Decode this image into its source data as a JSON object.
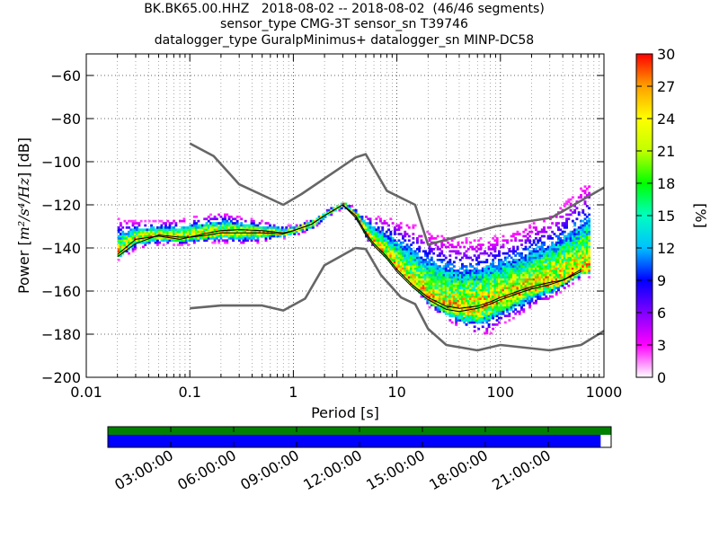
{
  "chart_data": {
    "type": "heatmap",
    "title_lines": [
      "BK.BK65.00.HHZ   2018-08-02 -- 2018-08-02  (46/46 segments)",
      "sensor_type CMG-3T sensor_sn T39746",
      "datalogger_type GuralpMinimus+ datalogger_sn MINP-DC58"
    ],
    "xlabel": "Period [s]",
    "ylabel": {
      "prefix": "Power [",
      "unit": "m²/s⁴/Hz",
      "suffix": "] [dB]"
    },
    "x_scale": "log",
    "xlim": [
      0.01,
      1000
    ],
    "ylim": [
      -200,
      -50
    ],
    "x_ticks": [
      {
        "value": 0.01,
        "label": "0.01"
      },
      {
        "value": 0.1,
        "label": "0.1"
      },
      {
        "value": 1,
        "label": "1"
      },
      {
        "value": 10,
        "label": "10"
      },
      {
        "value": 100,
        "label": "100"
      },
      {
        "value": 1000,
        "label": "1000"
      }
    ],
    "y_ticks": [
      {
        "value": -60,
        "label": "−60"
      },
      {
        "value": -80,
        "label": "−80"
      },
      {
        "value": -100,
        "label": "−100"
      },
      {
        "value": -120,
        "label": "−120"
      },
      {
        "value": -140,
        "label": "−140"
      },
      {
        "value": -160,
        "label": "−160"
      },
      {
        "value": -180,
        "label": "−180"
      },
      {
        "value": -200,
        "label": "−200"
      }
    ],
    "grid": true,
    "colorbar": {
      "label": "[%]",
      "range": [
        0,
        30
      ],
      "ticks": [
        {
          "value": 0,
          "label": "0"
        },
        {
          "value": 3,
          "label": "3"
        },
        {
          "value": 6,
          "label": "6"
        },
        {
          "value": 9,
          "label": "9"
        },
        {
          "value": 12,
          "label": "12"
        },
        {
          "value": 15,
          "label": "15"
        },
        {
          "value": 18,
          "label": "18"
        },
        {
          "value": 21,
          "label": "21"
        },
        {
          "value": 24,
          "label": "24"
        },
        {
          "value": 27,
          "label": "27"
        },
        {
          "value": 30,
          "label": "30"
        }
      ]
    },
    "noise_models": [
      {
        "x": [
          0.1,
          0.17,
          0.3,
          0.8,
          1.2,
          4,
          5,
          8,
          15,
          20,
          90,
          310,
          1000
        ],
        "y": [
          -91.5,
          -97.4,
          -110.5,
          -120,
          -115,
          -98,
          -96.5,
          -113.5,
          -120,
          -138.5,
          -130,
          -126,
          -112
        ]
      },
      {
        "x": [
          0.1,
          0.2,
          0.5,
          0.8,
          1.3,
          2,
          4,
          5,
          7,
          11,
          15,
          20,
          30,
          60,
          100,
          300,
          600,
          1000
        ],
        "y": [
          -168,
          -166.7,
          -166.7,
          -169,
          -163.5,
          -148,
          -140,
          -140.5,
          -152.5,
          -163,
          -166,
          -177.5,
          -185,
          -187.5,
          -185,
          -187.5,
          -185,
          -178.5
        ]
      }
    ],
    "mean_psd": {
      "x": [
        0.02,
        0.03,
        0.05,
        0.08,
        0.1,
        0.15,
        0.2,
        0.3,
        0.5,
        0.8,
        1,
        1.5,
        2,
        3,
        4,
        5,
        6,
        8,
        10,
        14,
        20,
        30,
        40,
        60,
        80,
        100,
        150,
        200,
        300,
        400,
        600
      ],
      "y": [
        -144,
        -138,
        -134,
        -135,
        -135,
        -133,
        -132,
        -131.5,
        -132,
        -133,
        -132,
        -129,
        -125,
        -120,
        -125,
        -133,
        -138,
        -144,
        -150,
        -157,
        -163,
        -167,
        -168,
        -167,
        -165,
        -163,
        -160,
        -158,
        -156,
        -155,
        -150
      ]
    },
    "median_psd": {
      "x": [
        0.02,
        0.03,
        0.05,
        0.08,
        0.1,
        0.15,
        0.2,
        0.3,
        0.5,
        0.8,
        1,
        1.5,
        2,
        3,
        4,
        5,
        6,
        8,
        10,
        14,
        20,
        30,
        40,
        60,
        80,
        100,
        150,
        200,
        300,
        400,
        600
      ],
      "y": [
        -143,
        -136,
        -134.5,
        -136,
        -135,
        -134,
        -133,
        -133,
        -133,
        -133.5,
        -132,
        -129,
        -125,
        -120,
        -126,
        -134,
        -139,
        -145,
        -151,
        -158,
        -164,
        -168.5,
        -169.5,
        -168,
        -166,
        -164,
        -161,
        -159,
        -157,
        -155,
        -151
      ]
    },
    "spread_upper": {
      "x": [
        0.02,
        0.03,
        0.05,
        0.08,
        0.1,
        0.15,
        0.2,
        0.3,
        0.5,
        0.8,
        1,
        1.5,
        2,
        3,
        4,
        5,
        7,
        10,
        15,
        20,
        30,
        40,
        60,
        80,
        100,
        150,
        200,
        300,
        400,
        500,
        700
      ],
      "y": [
        -127,
        -128,
        -128,
        -127,
        -126,
        -125,
        -124,
        -126,
        -128,
        -130,
        -130,
        -127,
        -123,
        -119,
        -122,
        -125,
        -126,
        -127,
        -130,
        -133,
        -135,
        -136,
        -136,
        -135,
        -134,
        -132,
        -128,
        -125,
        -120,
        -115,
        -109
      ]
    },
    "spread_lower": {
      "x": [
        0.02,
        0.03,
        0.05,
        0.08,
        0.1,
        0.15,
        0.2,
        0.3,
        0.5,
        0.8,
        1,
        1.5,
        2,
        3,
        4,
        5,
        7,
        10,
        15,
        20,
        30,
        40,
        60,
        80,
        100,
        150,
        200,
        300,
        400,
        600
      ],
      "y": [
        -146,
        -141,
        -139,
        -139,
        -139,
        -138,
        -138,
        -139,
        -138,
        -136,
        -135,
        -132,
        -127,
        -122,
        -128,
        -137,
        -143,
        -151,
        -160,
        -168,
        -174,
        -178,
        -182,
        -180,
        -176,
        -172,
        -168,
        -164,
        -160,
        -154
      ]
    }
  },
  "time_axis": {
    "tick_labels": [
      "03:00:00",
      "06:00:00",
      "09:00:00",
      "12:00:00",
      "15:00:00",
      "18:00:00",
      "21:00:00"
    ],
    "tick_hours": [
      3,
      6,
      9,
      12,
      15,
      18,
      21
    ],
    "range_hours": [
      0,
      24
    ],
    "data_coverage_hours": [
      0,
      23.5
    ],
    "psd_coverage_hours": [
      0,
      24
    ],
    "data_color": "#0000ff",
    "psd_color": "#008000"
  },
  "colors": {
    "noise_model": "#666666",
    "mean_line": "#000000",
    "median_line": "#000000",
    "colormap": [
      "#ffffff",
      "#ff00ff",
      "#8000ff",
      "#0000ff",
      "#00c0ff",
      "#00ffc0",
      "#00ff00",
      "#c0ff00",
      "#ffff00",
      "#ffa000",
      "#ff0000"
    ]
  }
}
